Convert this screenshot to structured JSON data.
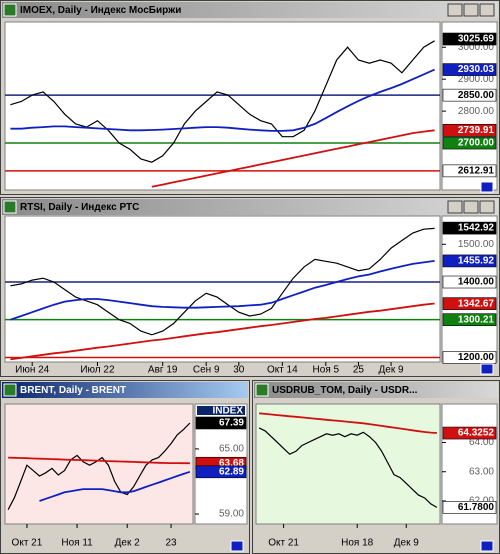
{
  "chart_data": [
    {
      "type": "line",
      "title": "IMOEX, Daily - Индекс МосБиржи",
      "background": "#ffffff",
      "ylim": [
        2553,
        3079
      ],
      "yticks": [
        {
          "value": 3000,
          "label": "3000.00"
        },
        {
          "value": 2900,
          "label": "2900.00"
        },
        {
          "value": 2800,
          "label": "2800.00"
        }
      ],
      "levels": [
        {
          "value": 3025.69,
          "label": "3025.69",
          "color": "#000000",
          "text_color": "#ffffff"
        },
        {
          "value": 2930.03,
          "label": "2930.03",
          "color": "#1020c0",
          "text_color": "#ffffff"
        },
        {
          "value": 2850,
          "label": "2850.00",
          "color": "#ffffff",
          "text_color": "#000000",
          "line": "#1a237e"
        },
        {
          "value": 2739.91,
          "label": "2739.91",
          "color": "#d01010",
          "text_color": "#ffffff"
        },
        {
          "value": 2700,
          "label": "2700.00",
          "color": "#108010",
          "text_color": "#ffffff",
          "line": "#108010"
        },
        {
          "value": 2612.91,
          "label": "2612.91",
          "color": "#ffffff",
          "text_color": "#000000",
          "line": "#d01010"
        }
      ],
      "series": [
        {
          "color": "#000000",
          "values": [
            2820,
            2830,
            2850,
            2860,
            2830,
            2790,
            2760,
            2750,
            2770,
            2740,
            2700,
            2680,
            2650,
            2640,
            2660,
            2700,
            2760,
            2800,
            2830,
            2860,
            2850,
            2820,
            2790,
            2770,
            2760,
            2720,
            2720,
            2740,
            2800,
            2880,
            2960,
            3000,
            2960,
            2950,
            2960,
            2950,
            2920,
            2960,
            3000,
            3020
          ]
        },
        {
          "color": "#1020c0",
          "values": [
            2745,
            2745,
            2748,
            2750,
            2752,
            2752,
            2750,
            2748,
            2746,
            2744,
            2742,
            2740,
            2740,
            2741,
            2742,
            2744,
            2746,
            2748,
            2750,
            2750,
            2748,
            2745,
            2742,
            2740,
            2738,
            2738,
            2740,
            2748,
            2760,
            2778,
            2797,
            2815,
            2832,
            2847,
            2860,
            2872,
            2885,
            2900,
            2915,
            2930
          ]
        },
        {
          "color": "#d01010",
          "values": [
            null,
            null,
            null,
            null,
            null,
            null,
            null,
            null,
            null,
            null,
            null,
            null,
            null,
            2563,
            2570,
            2577,
            2584,
            2591,
            2598,
            2605,
            2612,
            2619,
            2626,
            2633,
            2640,
            2647,
            2654,
            2661,
            2668,
            2675,
            2682,
            2689,
            2696,
            2703,
            2710,
            2717,
            2724,
            2731,
            2736,
            2740
          ]
        }
      ]
    },
    {
      "type": "line",
      "title": "RTSI, Daily - Индекс РТС",
      "background": "#ffffff",
      "ylim": [
        1188,
        1575
      ],
      "categories": [
        null,
        null,
        "Июн 24",
        null,
        null,
        null,
        null,
        null,
        "Июл 22",
        null,
        null,
        null,
        null,
        null,
        "Авг 19",
        null,
        null,
        null,
        "Сен 9",
        null,
        null,
        "30",
        null,
        null,
        null,
        "Окт 14",
        null,
        null,
        null,
        "Ноя 5",
        null,
        null,
        "25",
        null,
        null,
        "Дек 9",
        null,
        null,
        null,
        null
      ],
      "yticks": [
        {
          "value": 1500,
          "label": "1500.00"
        }
      ],
      "levels": [
        {
          "value": 1542.92,
          "label": "1542.92",
          "color": "#000000",
          "text_color": "#ffffff"
        },
        {
          "value": 1455.92,
          "label": "1455.92",
          "color": "#1020c0",
          "text_color": "#ffffff"
        },
        {
          "value": 1400,
          "label": "1400.00",
          "color": "#ffffff",
          "text_color": "#000000",
          "line": "#1a237e"
        },
        {
          "value": 1342.67,
          "label": "1342.67",
          "color": "#d01010",
          "text_color": "#ffffff"
        },
        {
          "value": 1300.21,
          "label": "1300.21",
          "color": "#108010",
          "text_color": "#ffffff",
          "line": "#108010"
        },
        {
          "value": 1200,
          "label": "1200.00",
          "color": "#ffffff",
          "text_color": "#000000",
          "line": "#d01010"
        }
      ],
      "series": [
        {
          "color": "#000000",
          "values": [
            1390,
            1395,
            1405,
            1410,
            1400,
            1380,
            1360,
            1350,
            1340,
            1320,
            1300,
            1290,
            1270,
            1260,
            1270,
            1290,
            1320,
            1350,
            1370,
            1360,
            1340,
            1320,
            1310,
            1315,
            1330,
            1370,
            1410,
            1440,
            1460,
            1455,
            1450,
            1440,
            1430,
            1435,
            1460,
            1490,
            1510,
            1530,
            1540,
            1542
          ]
        },
        {
          "color": "#1020c0",
          "values": [
            1300,
            1310,
            1320,
            1330,
            1340,
            1348,
            1352,
            1355,
            1355,
            1352,
            1348,
            1344,
            1340,
            1336,
            1334,
            1333,
            1332,
            1332,
            1333,
            1334,
            1335,
            1336,
            1338,
            1340,
            1345,
            1355,
            1365,
            1375,
            1385,
            1392,
            1400,
            1408,
            1415,
            1420,
            1428,
            1435,
            1442,
            1448,
            1452,
            1456
          ]
        },
        {
          "color": "#d01010",
          "values": [
            1195,
            1199,
            1203,
            1207,
            1211,
            1214,
            1218,
            1222,
            1226,
            1229,
            1233,
            1237,
            1241,
            1245,
            1248,
            1252,
            1256,
            1260,
            1264,
            1267,
            1271,
            1275,
            1279,
            1283,
            1286,
            1290,
            1294,
            1298,
            1302,
            1305,
            1309,
            1313,
            1317,
            1321,
            1324,
            1328,
            1332,
            1336,
            1340,
            1343
          ]
        }
      ]
    },
    {
      "type": "line",
      "title": "BRENT, Daily - BRENT",
      "background": "#fde6e6",
      "axis_header": "INDEX",
      "ylim": [
        58.08,
        69.14
      ],
      "categories": [
        null,
        null,
        null,
        "Окт 21",
        null,
        null,
        null,
        null,
        null,
        null,
        null,
        "Ноя 11",
        null,
        null,
        null,
        null,
        null,
        null,
        null,
        "Дек 2",
        null,
        null,
        null,
        null,
        null,
        null,
        "23",
        null,
        null,
        null
      ],
      "yticks": [
        {
          "value": 65,
          "label": "65.00"
        },
        {
          "value": 59,
          "label": "59.00"
        }
      ],
      "levels": [
        {
          "value": 67.39,
          "label": "67.39",
          "color": "#000000",
          "text_color": "#ffffff"
        },
        {
          "value": 63.68,
          "label": "63.68",
          "color": "#d01010",
          "text_color": "#ffffff"
        },
        {
          "value": 62.89,
          "label": "62.89",
          "color": "#1020c0",
          "text_color": "#ffffff"
        }
      ],
      "series": [
        {
          "color": "#000000",
          "values": [
            59.4,
            60.5,
            62,
            63.5,
            63,
            62.5,
            62.8,
            63.2,
            62.6,
            63,
            64,
            64.4,
            63.8,
            63.5,
            63.8,
            64.2,
            63.5,
            62,
            61,
            60.8,
            61.5,
            62.5,
            63.5,
            64,
            64.2,
            64.8,
            65.5,
            66.3,
            66.8,
            67.39
          ]
        },
        {
          "color": "#d01010",
          "values": [
            64.2,
            64.18,
            64.16,
            64.14,
            64.12,
            64.1,
            64.08,
            64.06,
            64.04,
            64.02,
            64,
            63.98,
            63.96,
            63.94,
            63.92,
            63.9,
            63.88,
            63.86,
            63.84,
            63.82,
            63.8,
            63.78,
            63.76,
            63.74,
            63.72,
            63.7,
            63.69,
            63.69,
            63.68,
            63.68
          ]
        },
        {
          "color": "#1020c0",
          "values": [
            null,
            null,
            null,
            null,
            null,
            60.2,
            60.4,
            60.6,
            60.8,
            61,
            61.1,
            61.2,
            61.3,
            61.3,
            61.3,
            61.3,
            61.2,
            61.1,
            61,
            61,
            61.1,
            61.3,
            61.5,
            61.7,
            61.9,
            62.1,
            62.3,
            62.5,
            62.7,
            62.89
          ]
        }
      ]
    },
    {
      "type": "line",
      "title": "USDRUB_TOM, Daily - USDR...",
      "background": "#e6f8de",
      "ylim": [
        61.21,
        65.32
      ],
      "categories": [
        null,
        null,
        null,
        null,
        "Окт 21",
        null,
        null,
        null,
        null,
        null,
        null,
        null,
        null,
        null,
        null,
        null,
        "Ноя 18",
        null,
        null,
        null,
        null,
        null,
        null,
        null,
        "Дек 9",
        null,
        null,
        null,
        null,
        null
      ],
      "yticks": [
        {
          "value": 64,
          "label": "64.00"
        },
        {
          "value": 63,
          "label": "63.00"
        },
        {
          "value": 62,
          "label": "62.00"
        }
      ],
      "levels": [
        {
          "value": 64.3252,
          "label": "64.3252",
          "color": "#d01010",
          "text_color": "#ffffff"
        },
        {
          "value": 61.78,
          "label": "61.7800",
          "color": "#ffffff",
          "text_color": "#000000"
        }
      ],
      "series": [
        {
          "color": "#000000",
          "values": [
            64.5,
            64.4,
            64.2,
            64,
            63.8,
            63.6,
            63.7,
            63.9,
            64,
            64.1,
            64.2,
            64.3,
            64.25,
            64.3,
            64.2,
            64.3,
            64.25,
            64.35,
            64.2,
            64,
            63.7,
            63.3,
            62.9,
            62.8,
            62.6,
            62.4,
            62.2,
            62.1,
            61.9,
            61.78
          ]
        },
        {
          "color": "#d01010",
          "values": [
            65,
            64.98,
            64.96,
            64.94,
            64.92,
            64.9,
            64.88,
            64.86,
            64.84,
            64.82,
            64.8,
            64.78,
            64.76,
            64.74,
            64.72,
            64.7,
            64.68,
            64.66,
            64.63,
            64.6,
            64.57,
            64.54,
            64.51,
            64.48,
            64.45,
            64.42,
            64.39,
            64.36,
            64.34,
            64.3252
          ]
        }
      ]
    }
  ]
}
